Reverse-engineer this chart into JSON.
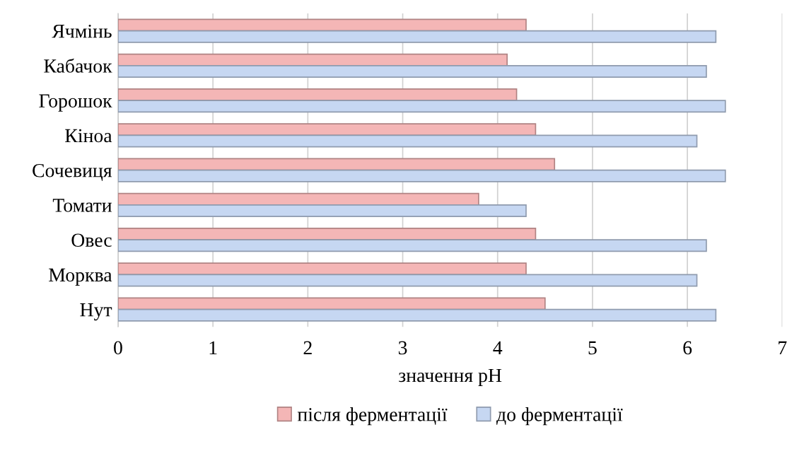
{
  "chart_data": {
    "type": "bar",
    "orientation": "horizontal",
    "xlabel": "значення pH",
    "categories": [
      "Ячмінь",
      "Кабачок",
      "Горошок",
      "Кіноа",
      "Сочевиця",
      "Томати",
      "Овес",
      "Морква",
      "Нут"
    ],
    "series": [
      {
        "name": "після ферментації",
        "color": "#f4b6b6",
        "values": [
          4.3,
          4.1,
          4.2,
          4.4,
          4.6,
          3.8,
          4.4,
          4.3,
          4.5
        ]
      },
      {
        "name": "до ферментації",
        "color": "#c6d7f2",
        "values": [
          6.3,
          6.2,
          6.4,
          6.1,
          6.4,
          4.3,
          6.2,
          6.1,
          6.3
        ]
      }
    ],
    "xlim": [
      0,
      7
    ],
    "xticks": [
      0,
      1,
      2,
      3,
      4,
      5,
      6,
      7
    ],
    "grid": "x",
    "legend": "bottom"
  }
}
